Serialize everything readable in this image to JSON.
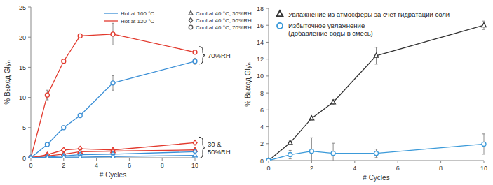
{
  "chart_data": [
    {
      "type": "line",
      "x_label": "# Cycles",
      "y_label": "% Выход Glyₙ",
      "x": [
        0,
        1,
        2,
        3,
        5,
        10
      ],
      "xlim": [
        0,
        10
      ],
      "xticks": [
        0,
        2,
        4,
        6,
        8,
        10
      ],
      "ylim": [
        0,
        25
      ],
      "yticks": [
        0,
        5,
        10,
        15,
        20,
        25
      ],
      "legend": "upper right",
      "legend_entries": [
        {
          "label": "Hot at 100 °C",
          "color": "#3b8fd6"
        },
        {
          "label": "Hot at 120 °C",
          "color": "#e2392d"
        },
        {
          "label": "Cool at 40 °C, 30%RH",
          "marker": "triangle"
        },
        {
          "label": "Cool at 40 °C, 50%RH",
          "marker": "diamond"
        },
        {
          "label": "Cool at 40 °C, 70%RH",
          "marker": "circle"
        }
      ],
      "series": [
        {
          "color": "#e2392d",
          "marker": "circle",
          "values": [
            0,
            10.4,
            16,
            20.2,
            20.5,
            17.5
          ],
          "errors": [
            0,
            0.8,
            0.3,
            0.3,
            1.8,
            0.3
          ]
        },
        {
          "color": "#3b8fd6",
          "marker": "circle",
          "values": [
            0,
            2.2,
            5,
            7,
            12.4,
            16
          ],
          "errors": [
            0,
            0.2,
            0.3,
            0.3,
            1.2,
            0.5
          ]
        },
        {
          "color": "#e2392d",
          "marker": "diamond",
          "values": [
            0,
            0.5,
            1.3,
            1.5,
            1.3,
            2.5
          ],
          "errors": [
            0,
            0.1,
            0.2,
            0.2,
            0.3,
            0.2
          ]
        },
        {
          "color": "#e2392d",
          "marker": "triangle",
          "values": [
            0,
            0.3,
            0.6,
            1.0,
            1.1,
            1.3
          ],
          "errors": [
            0,
            0.1,
            0.1,
            0.2,
            0.2,
            0.2
          ]
        },
        {
          "color": "#3b8fd6",
          "marker": "diamond",
          "values": [
            0,
            0.1,
            0.3,
            0.5,
            0.6,
            1.0
          ],
          "errors": [
            0,
            0.1,
            0.1,
            0.1,
            0.1,
            0.2
          ]
        },
        {
          "color": "#3b8fd6",
          "marker": "triangle",
          "values": [
            0,
            0,
            0.1,
            0.1,
            0.2,
            0.4
          ],
          "errors": [
            0,
            0,
            0.1,
            0.1,
            0.1,
            0.1
          ]
        }
      ],
      "annotations": [
        {
          "text": "70%RH",
          "series": [
            0,
            1
          ]
        },
        {
          "text": "30 &\n50%RH",
          "series": [
            2,
            3,
            4,
            5
          ]
        }
      ]
    },
    {
      "type": "line",
      "x_label": "# Cycles",
      "y_label": "% Выход Glyₙ",
      "x": [
        0,
        1,
        2,
        3,
        5,
        10
      ],
      "xlim": [
        0,
        10
      ],
      "xticks": [
        0,
        2,
        4,
        6,
        8,
        10
      ],
      "ylim": [
        0,
        18
      ],
      "yticks": [
        0,
        2,
        4,
        6,
        8,
        10,
        12,
        14,
        16,
        18
      ],
      "legend": "upper left",
      "series": [
        {
          "name": "Увлажнение из атмосферы за счет гидратации соли",
          "color": "#333333",
          "marker": "triangle",
          "values": [
            0,
            2.1,
            5,
            6.9,
            12.4,
            16
          ],
          "errors": [
            0,
            0.2,
            0.2,
            0.3,
            1.0,
            0.5
          ]
        },
        {
          "name": "Избыточное увлажнение\n(добавление воды в смесь)",
          "color": "#3b9ad9",
          "marker": "circle",
          "values": [
            0,
            0.7,
            1.1,
            0.85,
            0.85,
            1.95
          ],
          "errors": [
            0,
            0.5,
            1.6,
            1.2,
            0.5,
            1.2
          ]
        }
      ]
    }
  ]
}
